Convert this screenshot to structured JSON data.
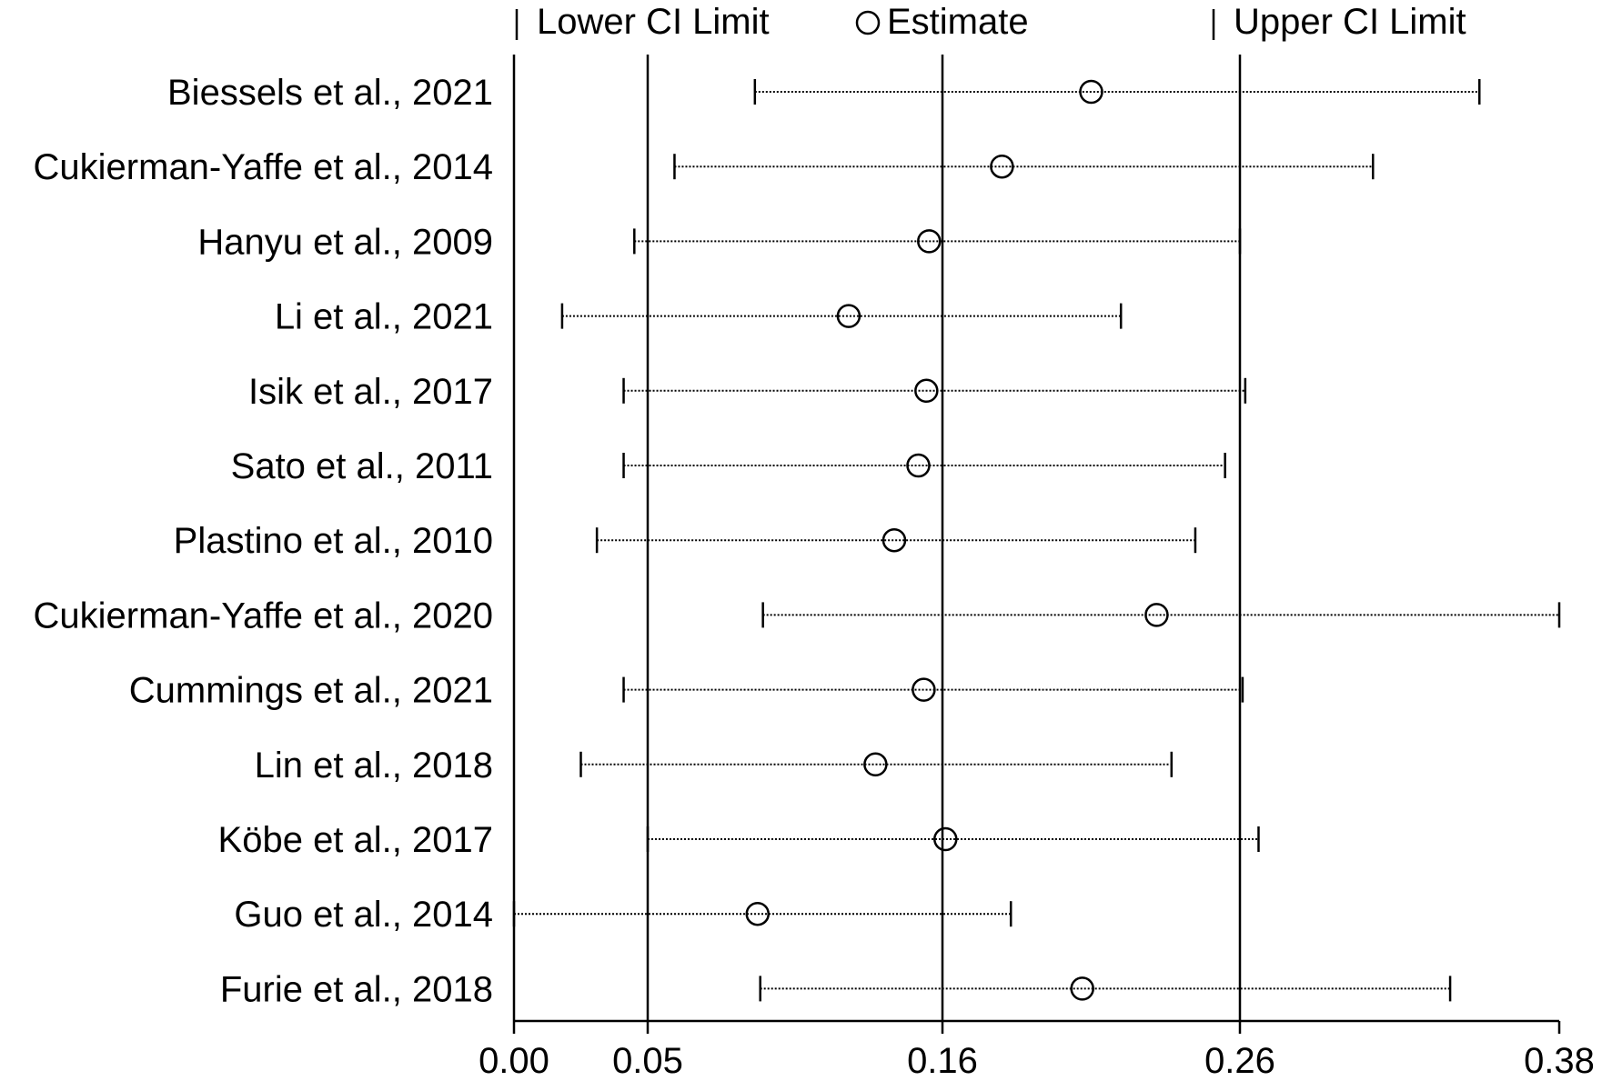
{
  "chart_data": {
    "type": "forest",
    "title": "",
    "xlabel": "",
    "ylabel": "",
    "legend": {
      "placement": "top",
      "entries": [
        {
          "marker": "tick",
          "label": "Lower CI Limit"
        },
        {
          "marker": "circle",
          "label": "Estimate"
        },
        {
          "marker": "tick",
          "label": "Upper CI Limit"
        }
      ]
    },
    "x_ticks": [
      {
        "value": 0.0,
        "label": "0.00"
      },
      {
        "value": 0.05,
        "label": "0.05"
      },
      {
        "value": 0.16,
        "label": "0.16"
      },
      {
        "value": 0.26,
        "label": "0.26"
      },
      {
        "value": 0.38,
        "label": "0.38"
      }
    ],
    "reference_lines": [
      0.05,
      0.16,
      0.26
    ],
    "studies": [
      {
        "label": "Biessels et al., 2021",
        "lower": 0.09,
        "estimate": 0.21,
        "upper": 0.35
      },
      {
        "label": "Cukierman-Yaffe et al., 2014",
        "lower": 0.06,
        "estimate": 0.18,
        "upper": 0.31
      },
      {
        "label": "Hanyu  et al., 2009",
        "lower": 0.045,
        "estimate": 0.155,
        "upper": 0.26
      },
      {
        "label": "Li et al., 2021",
        "lower": 0.018,
        "estimate": 0.125,
        "upper": 0.22
      },
      {
        "label": "Isik et al., 2017",
        "lower": 0.041,
        "estimate": 0.154,
        "upper": 0.262
      },
      {
        "label": "Sato et al., 2011",
        "lower": 0.041,
        "estimate": 0.151,
        "upper": 0.255
      },
      {
        "label": "Plastino et al., 2010",
        "lower": 0.031,
        "estimate": 0.142,
        "upper": 0.245
      },
      {
        "label": "Cukierman-Yaffe et al., 2020",
        "lower": 0.093,
        "estimate": 0.232,
        "upper": 0.38
      },
      {
        "label": "Cummings et al., 2021",
        "lower": 0.041,
        "estimate": 0.153,
        "upper": 0.261
      },
      {
        "label": "Lin et al., 2018",
        "lower": 0.025,
        "estimate": 0.135,
        "upper": 0.237
      },
      {
        "label": "Köbe et al., 2017",
        "lower": 0.05,
        "estimate": 0.161,
        "upper": 0.267
      },
      {
        "label": "Guo et al., 2014",
        "lower": 0.0,
        "estimate": 0.091,
        "upper": 0.183
      },
      {
        "label": "Furie et al., 2018",
        "lower": 0.092,
        "estimate": 0.207,
        "upper": 0.339
      }
    ]
  }
}
